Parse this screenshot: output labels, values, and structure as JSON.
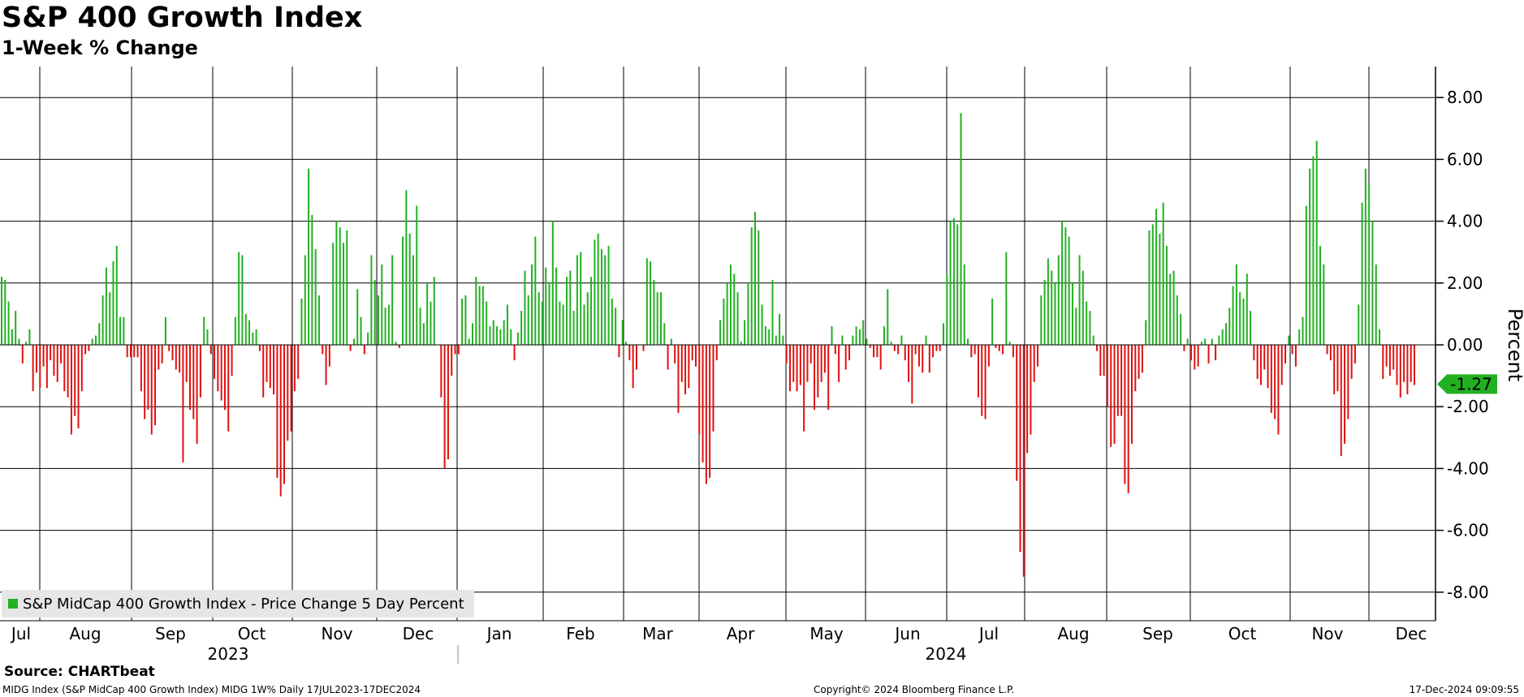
{
  "header": {
    "title": "S&P 400 Growth Index",
    "subtitle": "1-Week % Change"
  },
  "footer": {
    "source": "Source: CHARTbeat",
    "left": "MIDG Index (S&P MidCap 400 Growth Index) MIDG 1W%  Daily 17JUL2023-17DEC2024",
    "middle": "Copyright© 2024 Bloomberg Finance L.P.",
    "right": "17-Dec-2024 09:09:55"
  },
  "colors": {
    "positive": "#22b022",
    "negative": "#e01010",
    "grid": "#000000",
    "last_value_tag": "#22b022"
  },
  "chart_data": {
    "type": "bar",
    "ylabel": "Percent",
    "ylim": [
      -9.0,
      9.0
    ],
    "yticks": [
      "8.00",
      "6.00",
      "4.00",
      "2.00",
      "0.00",
      "-2.00",
      "-4.00",
      "-6.00",
      "-8.00"
    ],
    "months": [
      "Jul",
      "Aug",
      "Sep",
      "Oct",
      "Nov",
      "Dec",
      "Jan",
      "Feb",
      "Mar",
      "Apr",
      "May",
      "Jun",
      "Jul",
      "Aug",
      "Sep",
      "Oct",
      "Nov",
      "Dec"
    ],
    "years": [
      "2023",
      "2024"
    ],
    "legend": [
      "S&P MidCap 400 Growth Index - Price Change 5 Day Percent"
    ],
    "last_value": "-1.27",
    "series": [
      {
        "name": "S&P MidCap 400 Growth Index - Price Change 5 Day Percent",
        "values": [
          2.2,
          2.1,
          1.4,
          0.5,
          1.1,
          0.2,
          -0.6,
          0.1,
          0.5,
          -1.5,
          -0.9,
          -1.4,
          -0.7,
          -1.4,
          -0.5,
          -1.0,
          -1.2,
          -0.6,
          -1.5,
          -1.7,
          -2.9,
          -2.3,
          -2.7,
          -1.5,
          -0.3,
          -0.2,
          0.2,
          0.3,
          0.7,
          1.6,
          2.5,
          1.7,
          2.7,
          3.2,
          0.9,
          0.9,
          -0.4,
          -0.4,
          -0.4,
          -0.4,
          -1.5,
          -2.4,
          -2.1,
          -2.9,
          -2.6,
          -0.8,
          -0.6,
          0.9,
          -0.2,
          -0.5,
          -0.8,
          -0.9,
          -3.8,
          -1.2,
          -2.1,
          -2.4,
          -3.2,
          -1.7,
          0.9,
          0.5,
          -0.3,
          -1.1,
          -1.5,
          -1.8,
          -2.1,
          -2.8,
          -1.0,
          0.9,
          3.0,
          2.9,
          1.0,
          0.8,
          0.4,
          0.5,
          -0.2,
          -1.7,
          -1.2,
          -1.4,
          -1.6,
          -4.3,
          -4.9,
          -4.5,
          -3.1,
          -2.8,
          -1.5,
          -1.1,
          1.5,
          2.9,
          5.7,
          4.2,
          3.1,
          1.6,
          -0.3,
          -1.3,
          -0.7,
          3.3,
          4.0,
          3.8,
          3.3,
          3.7,
          -0.2,
          0.2,
          1.8,
          0.9,
          -0.3,
          0.4,
          2.9,
          2.1,
          1.6,
          2.6,
          1.2,
          1.3,
          2.9,
          0.1,
          -0.1,
          3.5,
          5.0,
          3.6,
          2.9,
          4.5,
          1.2,
          0.7,
          2.0,
          1.4,
          2.2,
          0.0,
          -1.7,
          -4.0,
          -3.7,
          -1.0,
          -0.3,
          -0.3,
          1.5,
          1.6,
          0.2,
          0.7,
          2.2,
          1.9,
          1.9,
          1.4,
          0.6,
          0.8,
          0.6,
          0.5,
          0.8,
          1.3,
          0.5,
          -0.5,
          0.4,
          1.1,
          2.4,
          1.6,
          2.6,
          3.5,
          1.7,
          1.4,
          2.5,
          2.0,
          4.0,
          2.5,
          1.4,
          1.3,
          2.2,
          2.4,
          1.1,
          2.9,
          3.0,
          1.3,
          1.7,
          2.2,
          3.4,
          3.6,
          3.1,
          2.9,
          3.2,
          1.5,
          1.2,
          -0.4,
          0.8,
          0.1,
          -0.5,
          -1.4,
          -0.8,
          0.0,
          -0.2,
          2.8,
          2.7,
          2.1,
          1.7,
          1.7,
          0.7,
          -0.8,
          0.2,
          -0.6,
          -2.2,
          -1.2,
          -1.6,
          -1.4,
          -0.5,
          -0.7,
          -2.9,
          -3.8,
          -4.5,
          -4.3,
          -2.8,
          -0.5,
          0.8,
          1.5,
          2.0,
          2.6,
          2.3,
          1.7,
          0.1,
          0.8,
          2.0,
          3.8,
          4.3,
          3.7,
          1.3,
          0.6,
          0.5,
          2.1,
          0.3,
          1.0,
          0.3,
          -0.6,
          -1.5,
          -1.2,
          -1.5,
          -1.3,
          -2.8,
          -1.2,
          -0.6,
          -2.1,
          -1.7,
          -1.2,
          -0.9,
          -2.1,
          0.6,
          -0.3,
          -1.2,
          0.3,
          -0.8,
          -0.5,
          0.3,
          0.6,
          0.5,
          0.8,
          0.2,
          -0.1,
          -0.4,
          -0.4,
          -0.8,
          0.6,
          1.8,
          0.1,
          -0.2,
          -0.3,
          0.3,
          -0.5,
          -1.2,
          -1.9,
          -0.3,
          -0.7,
          -0.9,
          0.3,
          -0.9,
          -0.4,
          -0.2,
          -0.2,
          0.7,
          2.3,
          4.0,
          4.1,
          3.9,
          7.5,
          2.6,
          0.2,
          -0.4,
          -0.3,
          -1.7,
          -2.3,
          -2.4,
          -0.7,
          1.5,
          -0.1,
          -0.2,
          -0.3,
          3.0,
          0.1,
          -0.4,
          -4.4,
          -6.7,
          -7.5,
          -3.5,
          -2.9,
          -1.2,
          -0.7,
          1.6,
          2.1,
          2.8,
          2.4,
          2.0,
          2.9,
          4.0,
          3.8,
          3.5,
          2.0,
          1.2,
          2.9,
          2.4,
          1.4,
          1.1,
          0.3,
          -0.2,
          -1.0,
          -1.0,
          -2.0,
          -3.3,
          -3.2,
          -2.3,
          -2.3,
          -4.5,
          -4.8,
          -3.2,
          -1.5,
          -1.1,
          -0.9,
          0.8,
          3.7,
          3.9,
          4.4,
          3.6,
          4.6,
          3.2,
          2.3,
          2.4,
          1.6,
          1.0,
          -0.2,
          0.2,
          -0.5,
          -0.8,
          -0.7,
          0.1,
          0.2,
          -0.6,
          0.2,
          -0.5,
          0.3,
          0.5,
          0.7,
          1.2,
          1.9,
          2.6,
          1.7,
          1.5,
          2.3,
          1.1,
          -0.5,
          -1.1,
          -1.3,
          -0.8,
          -1.4,
          -2.2,
          -2.4,
          -2.9,
          -1.3,
          -0.6,
          0.3,
          -0.3,
          -0.7,
          0.5,
          0.9,
          4.5,
          5.7,
          6.1,
          6.6,
          3.2,
          2.6,
          -0.3,
          -0.5,
          -1.6,
          -1.5,
          -3.6,
          -3.2,
          -2.4,
          -1.1,
          -0.6,
          1.3,
          4.6,
          5.7,
          5.2,
          4.0,
          2.6,
          0.5,
          -1.1,
          -0.7,
          -1.0,
          -0.8,
          -1.3,
          -1.7,
          -1.2,
          -1.6,
          -1.2,
          -1.3
        ]
      }
    ]
  }
}
